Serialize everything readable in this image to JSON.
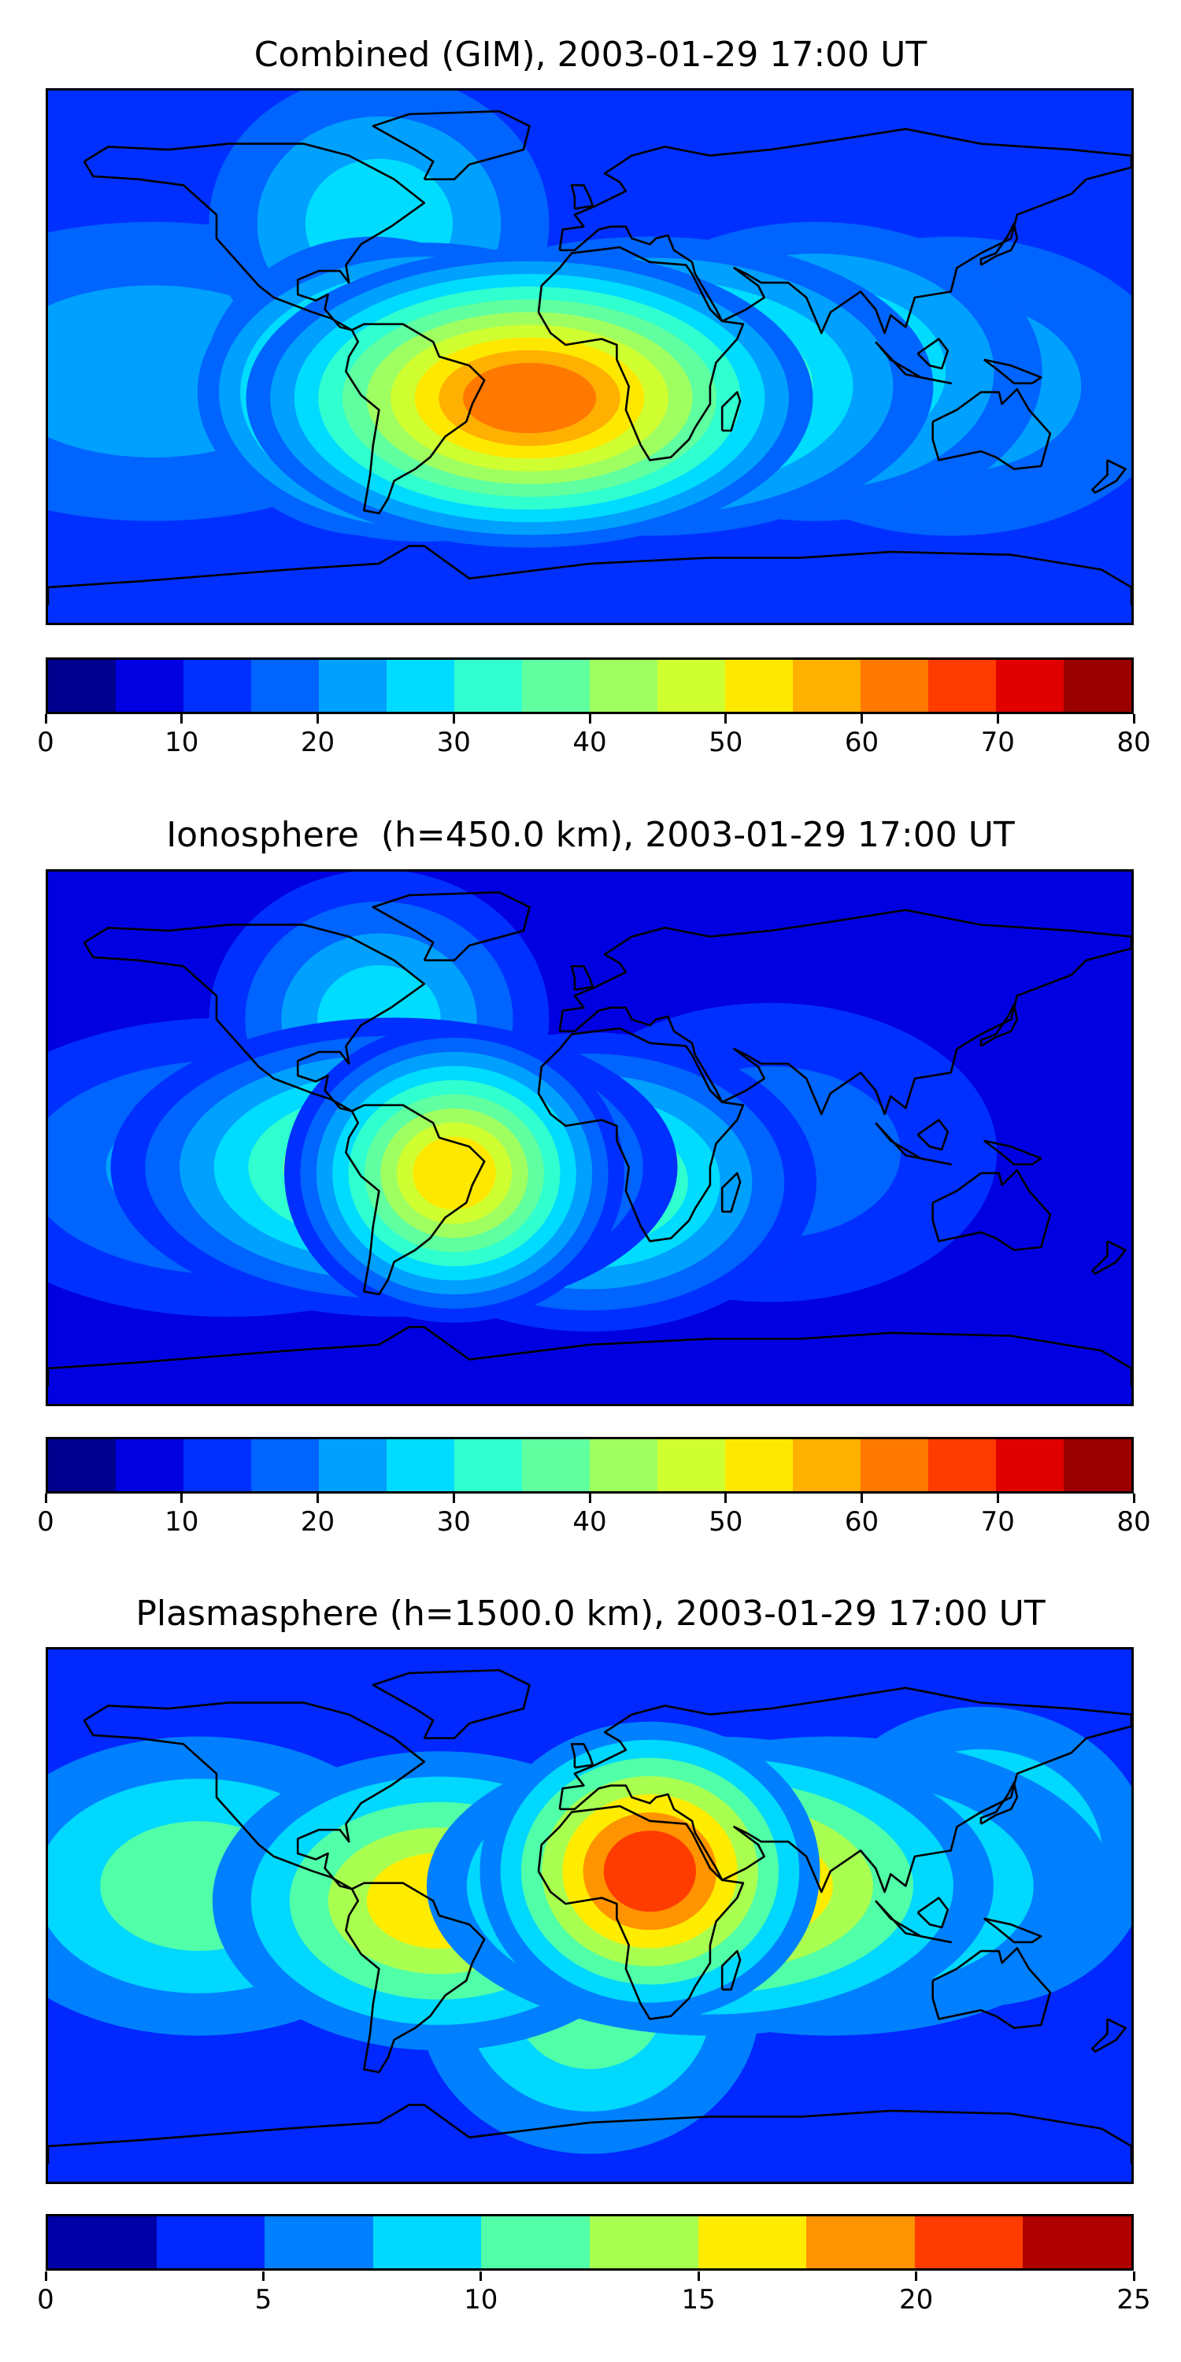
{
  "chart_data": [
    {
      "type": "heatmap",
      "title": "Combined (GIM), 2003-01-29 17:00 UT",
      "colorbar": {
        "levels": [
          0,
          5,
          10,
          15,
          20,
          25,
          30,
          35,
          40,
          45,
          50,
          55,
          60,
          65,
          70,
          75,
          80
        ],
        "tick_labels": [
          "0",
          "10",
          "20",
          "30",
          "40",
          "50",
          "60",
          "70",
          "80"
        ],
        "tick_values": [
          0,
          10,
          20,
          30,
          40,
          50,
          60,
          70,
          80
        ],
        "colors": [
          "#00008f",
          "#0000e0",
          "#0030ff",
          "#0064ff",
          "#00a0ff",
          "#00dcff",
          "#30ffcf",
          "#60ff9f",
          "#a0ff60",
          "#cfff30",
          "#ffe800",
          "#ffb000",
          "#ff7800",
          "#ff3c00",
          "#e00000",
          "#9b0000"
        ]
      },
      "background_level": 10,
      "features": [
        {
          "lon": -55,
          "lat": -12,
          "value": 55
        },
        {
          "lon": -20,
          "lat": -14,
          "value": 60
        },
        {
          "lon": -72,
          "lat": -10,
          "value": 45
        },
        {
          "lon": 20,
          "lat": -10,
          "value": 40
        },
        {
          "lon": 75,
          "lat": -5,
          "value": 30
        },
        {
          "lon": 120,
          "lat": -10,
          "value": 22
        },
        {
          "lon": -70,
          "lat": 45,
          "value": 25
        },
        {
          "lon": -145,
          "lat": -5,
          "value": 22
        },
        {
          "lon": 150,
          "lat": 30,
          "value": 12
        }
      ]
    },
    {
      "type": "heatmap",
      "title": "Ionosphere  (h=450.0 km), 2003-01-29 17:00 UT",
      "colorbar": {
        "levels": [
          0,
          5,
          10,
          15,
          20,
          25,
          30,
          35,
          40,
          45,
          50,
          55,
          60,
          65,
          70,
          75,
          80
        ],
        "tick_labels": [
          "0",
          "10",
          "20",
          "30",
          "40",
          "50",
          "60",
          "70",
          "80"
        ],
        "tick_values": [
          0,
          10,
          20,
          30,
          40,
          50,
          60,
          70,
          80
        ],
        "colors": [
          "#00008f",
          "#0000e0",
          "#0030ff",
          "#0064ff",
          "#00a0ff",
          "#00dcff",
          "#30ffcf",
          "#60ff9f",
          "#a0ff60",
          "#cfff30",
          "#ffe800",
          "#ffb000",
          "#ff7800",
          "#ff3c00",
          "#e00000",
          "#9b0000"
        ]
      },
      "background_level": 8,
      "features": [
        {
          "lon": -45,
          "lat": -12,
          "value": 50
        },
        {
          "lon": -65,
          "lat": -10,
          "value": 42
        },
        {
          "lon": 0,
          "lat": -15,
          "value": 38
        },
        {
          "lon": -70,
          "lat": 40,
          "value": 25
        },
        {
          "lon": -120,
          "lat": -10,
          "value": 22
        },
        {
          "lon": 60,
          "lat": -5,
          "value": 18
        },
        {
          "lon": 110,
          "lat": 40,
          "value": 3
        }
      ]
    },
    {
      "type": "heatmap",
      "title": "Plasmasphere (h=1500.0 km), 2003-01-29 17:00 UT",
      "colorbar": {
        "levels": [
          0,
          2.5,
          5,
          7.5,
          10,
          12.5,
          15,
          17.5,
          20,
          22.5,
          25
        ],
        "tick_labels": [
          "0",
          "5",
          "10",
          "15",
          "20",
          "25"
        ],
        "tick_values": [
          0,
          5,
          10,
          15,
          20,
          25
        ],
        "colors": [
          "#0000a8",
          "#0028ff",
          "#0080ff",
          "#00d8ff",
          "#50ffa8",
          "#a8ff50",
          "#ffec00",
          "#ff9400",
          "#ff3c00",
          "#b00000"
        ]
      },
      "background_level": 4,
      "features": [
        {
          "lon": 20,
          "lat": 15,
          "value": 20
        },
        {
          "lon": 40,
          "lat": 10,
          "value": 19
        },
        {
          "lon": -50,
          "lat": 5,
          "value": 16
        },
        {
          "lon": 80,
          "lat": 10,
          "value": 12
        },
        {
          "lon": -130,
          "lat": 10,
          "value": 11
        },
        {
          "lon": 130,
          "lat": 20,
          "value": 10
        },
        {
          "lon": 0,
          "lat": -30,
          "value": 12
        }
      ]
    }
  ]
}
